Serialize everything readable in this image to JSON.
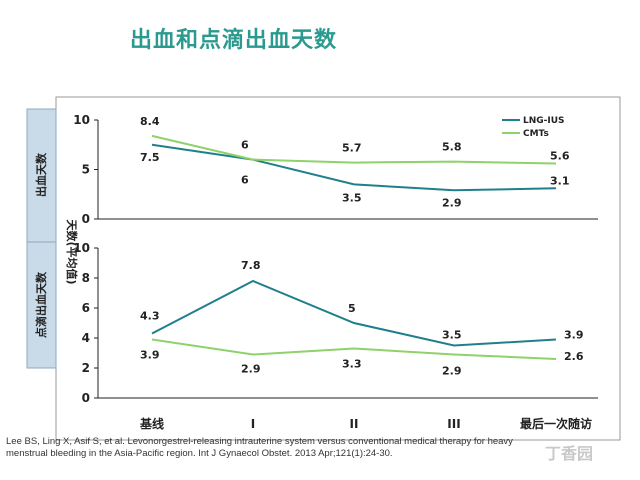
{
  "slide": {
    "title": "出血和点滴出血天数",
    "citation": "Lee BS, Ling X, Asif S, et al. Levonorgestrel-releasing intrauterine system versus conventional medical therapy for heavy menstrual bleeding in the Asia-Pacific region. Int J Gynaecol Obstet. 2013 Apr;121(1):24-30.",
    "watermark": "丁香园"
  },
  "colors": {
    "lng": "#1f7f8c",
    "cmt": "#8fd16a",
    "title": "#2a9a8e",
    "panel_label_bg": "#c9dbe8"
  },
  "chart_data": [
    {
      "type": "line",
      "panel_label": "出血天数",
      "y_axis_label": "天数(平均值)",
      "categories": [
        "基线",
        "I",
        "II",
        "III",
        "最后一次随访"
      ],
      "ylim": [
        0,
        10
      ],
      "yticks": [
        "0",
        "5",
        "10"
      ],
      "legend": {
        "position": "top-right",
        "entries": [
          "LNG-IUS",
          "CMTs"
        ]
      },
      "series": [
        {
          "name": "LNG-IUS",
          "values": [
            7.5,
            6,
            3.5,
            2.9,
            3.1
          ],
          "labels": [
            "7.5",
            "6",
            "3.5",
            "2.9",
            "3.1"
          ]
        },
        {
          "name": "CMTs",
          "values": [
            8.4,
            6,
            5.7,
            5.8,
            5.6
          ],
          "labels": [
            "8.4",
            "6",
            "5.7",
            "5.8",
            "5.6"
          ]
        }
      ],
      "grid": false
    },
    {
      "type": "line",
      "panel_label": "点滴出血天数",
      "categories": [
        "基线",
        "I",
        "II",
        "III",
        "最后一次随访"
      ],
      "ylim": [
        0,
        10
      ],
      "yticks": [
        "0",
        "2",
        "4",
        "6",
        "8",
        "10"
      ],
      "series": [
        {
          "name": "LNG-IUS",
          "values": [
            4.3,
            7.8,
            5,
            3.5,
            3.9
          ],
          "labels": [
            "4.3",
            "7.8",
            "5",
            "3.5",
            "3.9"
          ]
        },
        {
          "name": "CMTs",
          "values": [
            3.9,
            2.9,
            3.3,
            2.9,
            2.6
          ],
          "labels": [
            "3.9",
            "2.9",
            "3.3",
            "2.9",
            "2.6"
          ]
        }
      ],
      "grid": false
    }
  ]
}
